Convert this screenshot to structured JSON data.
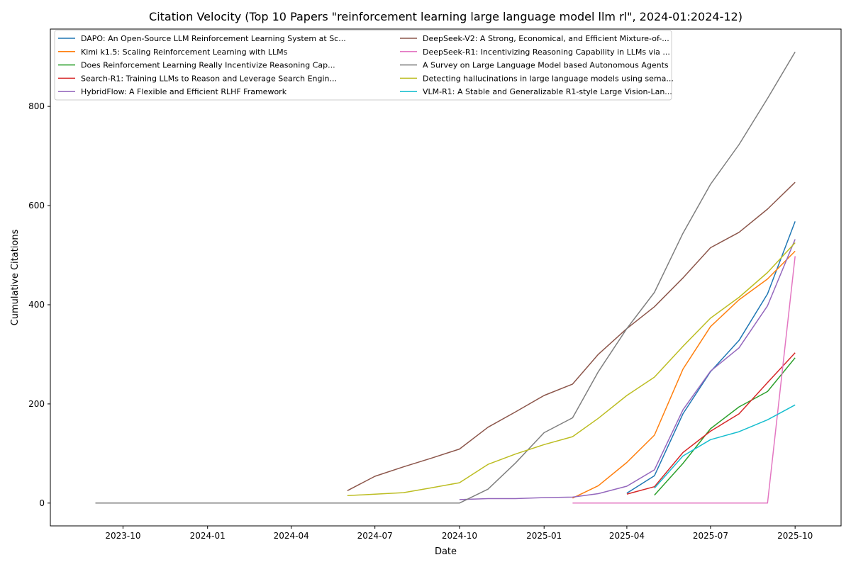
{
  "chart_data": {
    "type": "line",
    "title": "Citation Velocity (Top 10 Papers \"reinforcement learning large language model llm rl\", 2024-01:2024-12)",
    "xlabel": "Date",
    "ylabel": "Cumulative Citations",
    "xlim": [
      "2023-07-14",
      "2025-11-20"
    ],
    "ylim": [
      -46,
      956
    ],
    "x_ticks": [
      "2023-10",
      "2024-01",
      "2024-04",
      "2024-07",
      "2024-10",
      "2025-01",
      "2025-04",
      "2025-07",
      "2025-10"
    ],
    "y_ticks": [
      0,
      200,
      400,
      600,
      800
    ],
    "grid": false,
    "legend": "upper-left",
    "series": [
      {
        "name": "DAPO: An Open-Source LLM Reinforcement Learning System at Sc...",
        "color": "#1f77b4",
        "x": [
          "2025-04",
          "2025-05",
          "2025-06",
          "2025-07",
          "2025-08",
          "2025-09",
          "2025-10"
        ],
        "y": [
          20,
          55,
          180,
          265,
          328,
          422,
          568
        ]
      },
      {
        "name": "Kimi k1.5: Scaling Reinforcement Learning with LLMs",
        "color": "#ff7f0e",
        "x": [
          "2025-02",
          "2025-03",
          "2025-04",
          "2025-05",
          "2025-06",
          "2025-07",
          "2025-08",
          "2025-09",
          "2025-10"
        ],
        "y": [
          10,
          35,
          82,
          137,
          270,
          356,
          410,
          452,
          508
        ]
      },
      {
        "name": "Does Reinforcement Learning Really Incentivize Reasoning Cap...",
        "color": "#2ca02c",
        "x": [
          "2025-05",
          "2025-06",
          "2025-07",
          "2025-08",
          "2025-09",
          "2025-10"
        ],
        "y": [
          16,
          80,
          150,
          194,
          225,
          293
        ]
      },
      {
        "name": "Search-R1: Training LLMs to Reason and Leverage Search Engin...",
        "color": "#d62728",
        "x": [
          "2025-04",
          "2025-05",
          "2025-06",
          "2025-07",
          "2025-08",
          "2025-09",
          "2025-10"
        ],
        "y": [
          18,
          33,
          102,
          145,
          180,
          243,
          303
        ]
      },
      {
        "name": "HybridFlow: A Flexible and Efficient RLHF Framework",
        "color": "#9467bd",
        "x": [
          "2024-10",
          "2024-11",
          "2024-12",
          "2025-01",
          "2025-02",
          "2025-03",
          "2025-04",
          "2025-05",
          "2025-06",
          "2025-07",
          "2025-08",
          "2025-09",
          "2025-10"
        ],
        "y": [
          7,
          9,
          9,
          11,
          12,
          19,
          34,
          67,
          188,
          266,
          313,
          398,
          532
        ]
      },
      {
        "name": "DeepSeek-V2: A Strong, Economical, and Efficient Mixture-of-...",
        "color": "#8c564b",
        "x": [
          "2024-06",
          "2024-07",
          "2024-08",
          "2024-09",
          "2024-10",
          "2024-11",
          "2024-12",
          "2025-01",
          "2025-02",
          "2025-03",
          "2025-04",
          "2025-05",
          "2025-06",
          "2025-07",
          "2025-08",
          "2025-09",
          "2025-10"
        ],
        "y": [
          25,
          54,
          73,
          91,
          109,
          153,
          184,
          217,
          240,
          300,
          352,
          396,
          454,
          515,
          546,
          593,
          647
        ]
      },
      {
        "name": "DeepSeek-R1: Incentivizing Reasoning Capability in LLMs via ...",
        "color": "#e377c2",
        "x": [
          "2025-02",
          "2025-03",
          "2025-04",
          "2025-05",
          "2025-06",
          "2025-07",
          "2025-08",
          "2025-09",
          "2025-10"
        ],
        "y": [
          0,
          0,
          0,
          0,
          0,
          0,
          0,
          0,
          498
        ]
      },
      {
        "name": "A Survey on Large Language Model based Autonomous Agents",
        "color": "#7f7f7f",
        "x": [
          "2023-09",
          "2023-10",
          "2023-11",
          "2023-12",
          "2024-01",
          "2024-02",
          "2024-03",
          "2024-04",
          "2024-05",
          "2024-06",
          "2024-07",
          "2024-08",
          "2024-09",
          "2024-10",
          "2024-11",
          "2024-12",
          "2025-01",
          "2025-02",
          "2025-03",
          "2025-04",
          "2025-05",
          "2025-06",
          "2025-07",
          "2025-08",
          "2025-09",
          "2025-10"
        ],
        "y": [
          0,
          0,
          0,
          0,
          0,
          0,
          0,
          0,
          0,
          0,
          0,
          0,
          0,
          0,
          28,
          81,
          142,
          172,
          265,
          352,
          425,
          544,
          643,
          723,
          816,
          910
        ]
      },
      {
        "name": "Detecting hallucinations in large language models using sema...",
        "color": "#bcbd22",
        "x": [
          "2024-06",
          "2024-07",
          "2024-08",
          "2024-09",
          "2024-10",
          "2024-11",
          "2024-12",
          "2025-01",
          "2025-02",
          "2025-03",
          "2025-04",
          "2025-05",
          "2025-06",
          "2025-07",
          "2025-08",
          "2025-09",
          "2025-10"
        ],
        "y": [
          15,
          18,
          21,
          31,
          41,
          78,
          99,
          118,
          134,
          171,
          217,
          254,
          316,
          373,
          415,
          465,
          525
        ]
      },
      {
        "name": "VLM-R1: A Stable and Generalizable R1-style Large Vision-Lan...",
        "color": "#17becf",
        "x": [
          "2025-05",
          "2025-06",
          "2025-07",
          "2025-08",
          "2025-09",
          "2025-10"
        ],
        "y": [
          30,
          95,
          128,
          144,
          168,
          198
        ]
      }
    ]
  }
}
